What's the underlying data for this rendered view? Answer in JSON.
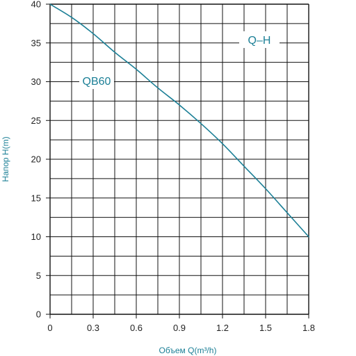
{
  "chart_data": {
    "type": "line",
    "xlabel": "Объем Q(m³/h)",
    "ylabel": "Напор H(m)",
    "xlim": [
      0,
      1.8
    ],
    "ylim": [
      0,
      40
    ],
    "x_ticks": [
      "0",
      "0.3",
      "0.6",
      "0.9",
      "1.2",
      "1.5",
      "1.8"
    ],
    "y_ticks": [
      "0",
      "5",
      "10",
      "15",
      "20",
      "25",
      "30",
      "35",
      "40"
    ],
    "grid": true,
    "curve_type_label": "Q–H",
    "series": [
      {
        "name": "QB60",
        "x": [
          0,
          0.15,
          0.3,
          0.45,
          0.6,
          0.75,
          0.9,
          1.05,
          1.2,
          1.35,
          1.5,
          1.65,
          1.8
        ],
        "y": [
          40,
          38.3,
          36.2,
          33.8,
          31.6,
          29.2,
          27,
          24.6,
          22,
          19.1,
          16.2,
          13.1,
          10
        ]
      }
    ]
  },
  "colors": {
    "curve": "#1b7f96",
    "axis_title": "#1b7f96",
    "label_box_text": "#1b7f96",
    "grid": "#111111"
  }
}
